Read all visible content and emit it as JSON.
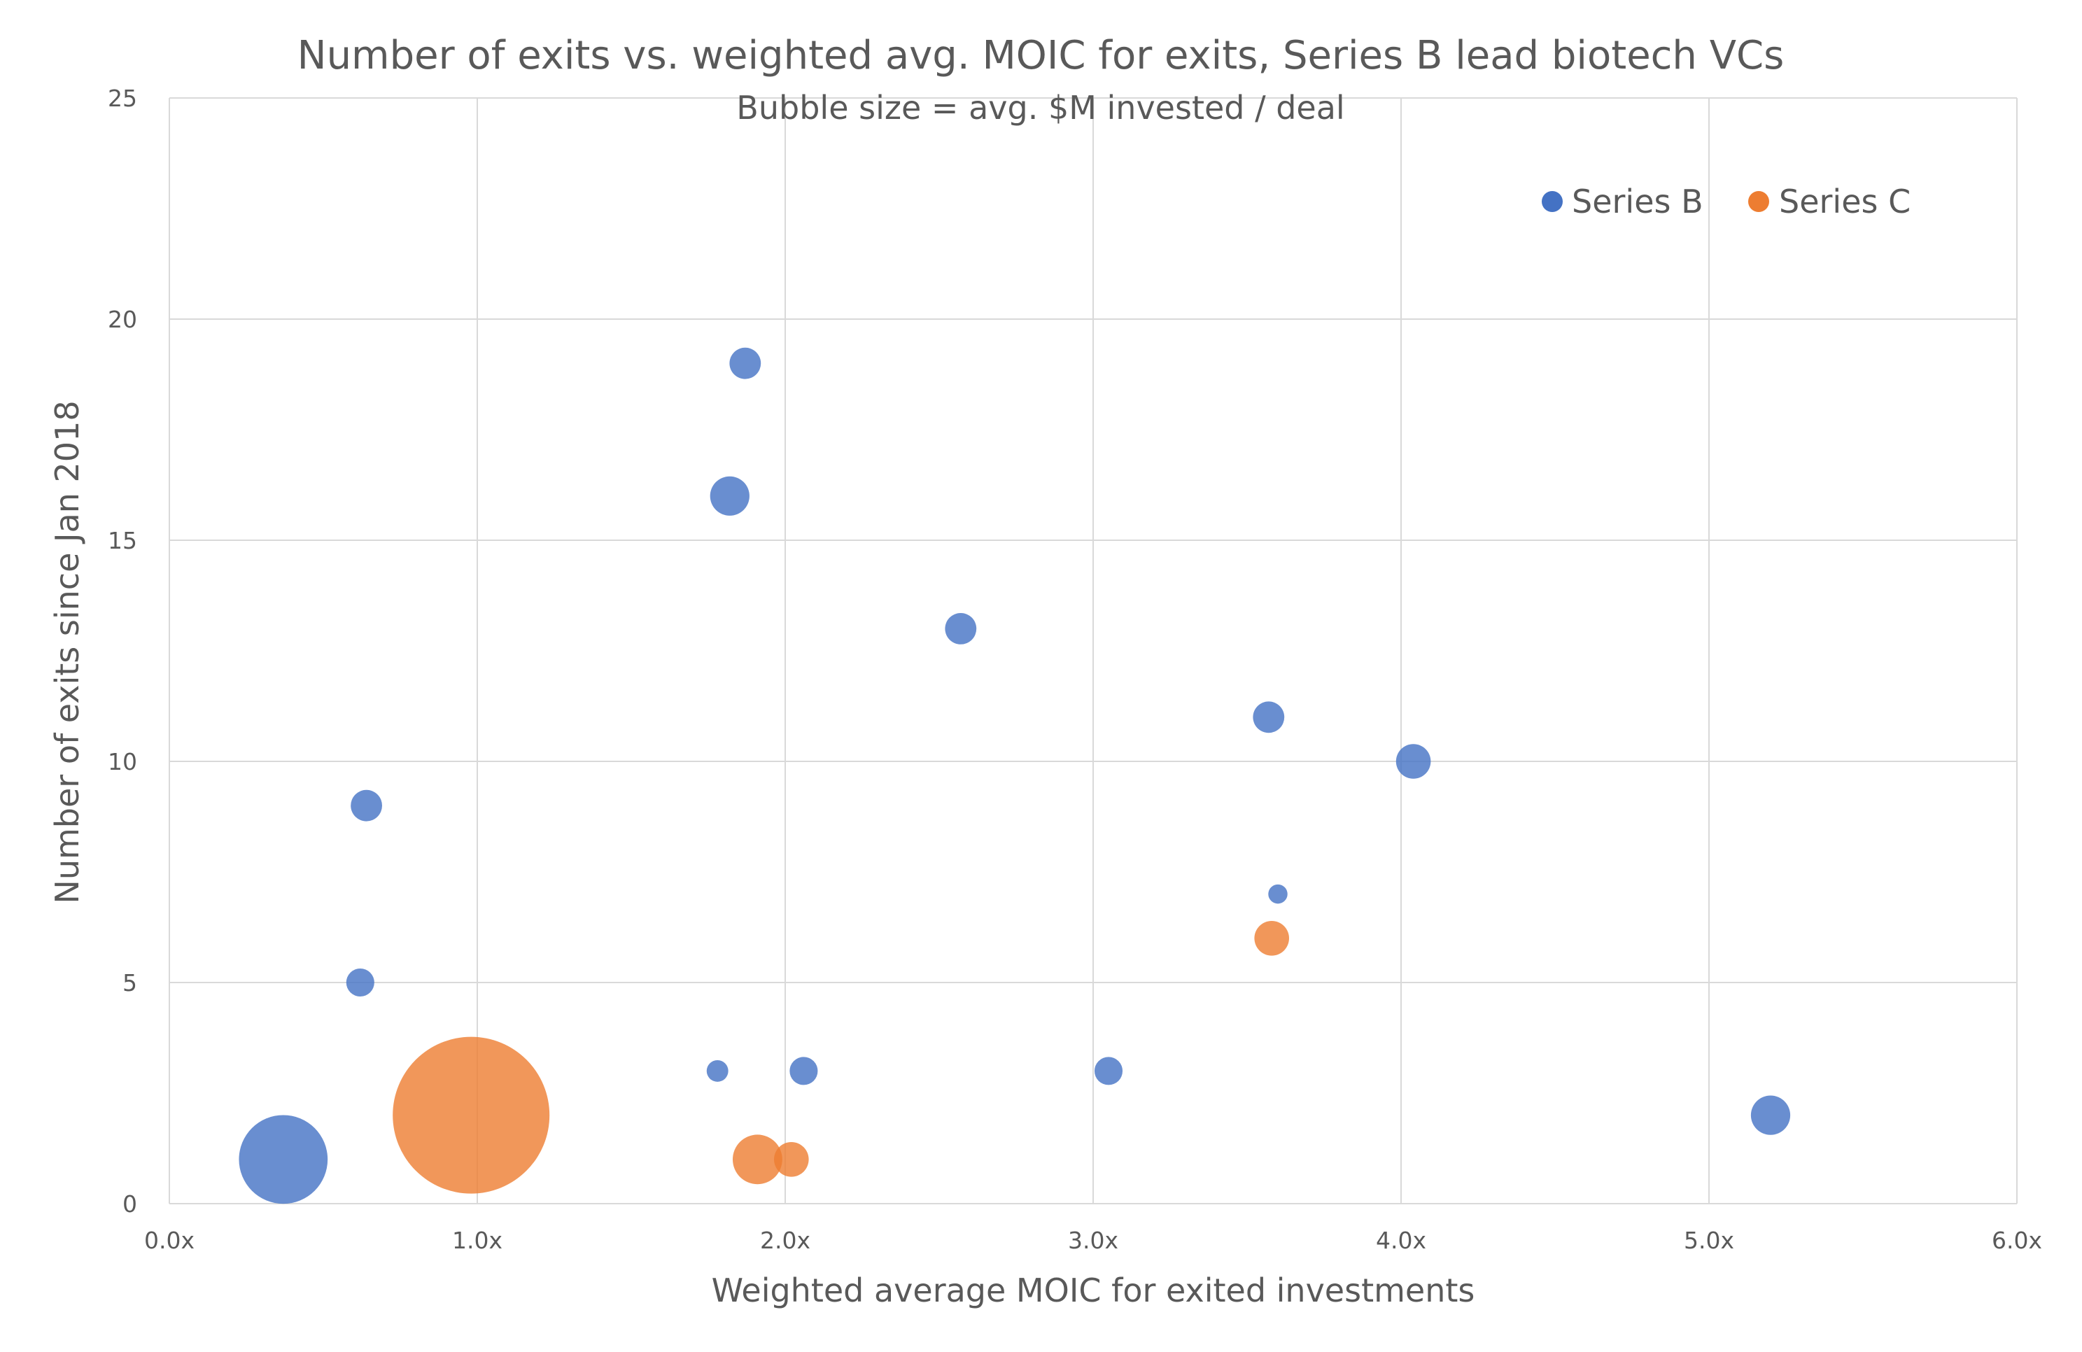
{
  "chart_data": {
    "type": "scatter",
    "title": "Number of exits vs. weighted avg. MOIC for exits, Series B lead biotech VCs",
    "subtitle": "Bubble size = avg. $M invested / deal",
    "xlabel": "Weighted average MOIC for exited investments",
    "ylabel": "Number of exits since Jan 2018",
    "xlim": [
      0,
      6
    ],
    "ylim": [
      0,
      25
    ],
    "x_ticks": [
      0,
      1,
      2,
      3,
      4,
      5,
      6
    ],
    "x_tick_labels": [
      "0.0x",
      "1.0x",
      "2.0x",
      "3.0x",
      "4.0x",
      "5.0x",
      "6.0x"
    ],
    "y_ticks": [
      0,
      5,
      10,
      15,
      20,
      25
    ],
    "y_tick_labels": [
      "0",
      "5",
      "10",
      "15",
      "20",
      "25"
    ],
    "grid": true,
    "legend_position": "top-right",
    "bubble_size_label": "avg. $M invested / deal",
    "series": [
      {
        "name": "Series B",
        "color": "#4472C4",
        "points": [
          {
            "x": 0.37,
            "y": 1,
            "size": 32
          },
          {
            "x": 0.62,
            "y": 5,
            "size": 3.2
          },
          {
            "x": 0.64,
            "y": 9,
            "size": 4
          },
          {
            "x": 1.78,
            "y": 3,
            "size": 1.9
          },
          {
            "x": 1.82,
            "y": 16,
            "size": 6.3
          },
          {
            "x": 1.87,
            "y": 19,
            "size": 4
          },
          {
            "x": 2.06,
            "y": 3,
            "size": 3.2
          },
          {
            "x": 2.57,
            "y": 13,
            "size": 4
          },
          {
            "x": 3.05,
            "y": 3,
            "size": 3.2
          },
          {
            "x": 3.57,
            "y": 11,
            "size": 4
          },
          {
            "x": 3.6,
            "y": 7,
            "size": 1.5
          },
          {
            "x": 4.04,
            "y": 10,
            "size": 4.9
          },
          {
            "x": 5.2,
            "y": 2,
            "size": 6.3
          }
        ]
      },
      {
        "name": "Series C",
        "color": "#ED7D31",
        "points": [
          {
            "x": 0.98,
            "y": 2,
            "size": 100
          },
          {
            "x": 1.91,
            "y": 1,
            "size": 10
          },
          {
            "x": 2.02,
            "y": 1,
            "size": 4.9
          },
          {
            "x": 3.58,
            "y": 6,
            "size": 4.9
          }
        ]
      }
    ]
  }
}
